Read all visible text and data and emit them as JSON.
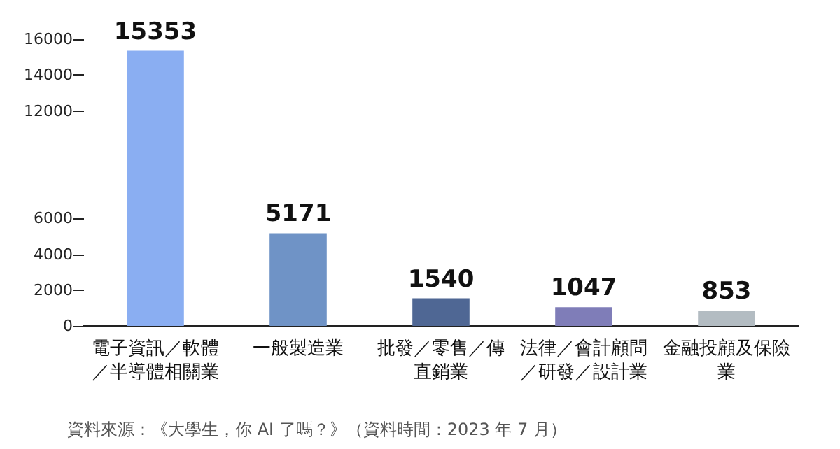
{
  "chart_data": {
    "type": "bar",
    "categories": [
      "電子資訊／軟體／半導體相關業",
      "一般製造業",
      "批發／零售／傳直銷業",
      "法律／會計顧問／研發／設計業",
      "金融投顧及保險業"
    ],
    "values": [
      15353,
      5171,
      1540,
      1047,
      853
    ],
    "colors": [
      "#8aaef2",
      "#6f93c6",
      "#4f6794",
      "#7f7db8",
      "#b3bcc2"
    ],
    "ylim": [
      0,
      16000
    ],
    "yticks": [
      0,
      2000,
      4000,
      6000,
      12000,
      14000,
      16000
    ],
    "grid": false,
    "data_labels": true,
    "annotations": [
      "資料來源：《大學生，你 AI 了嗎？》（資料時間：2023 年 7 月）"
    ]
  }
}
